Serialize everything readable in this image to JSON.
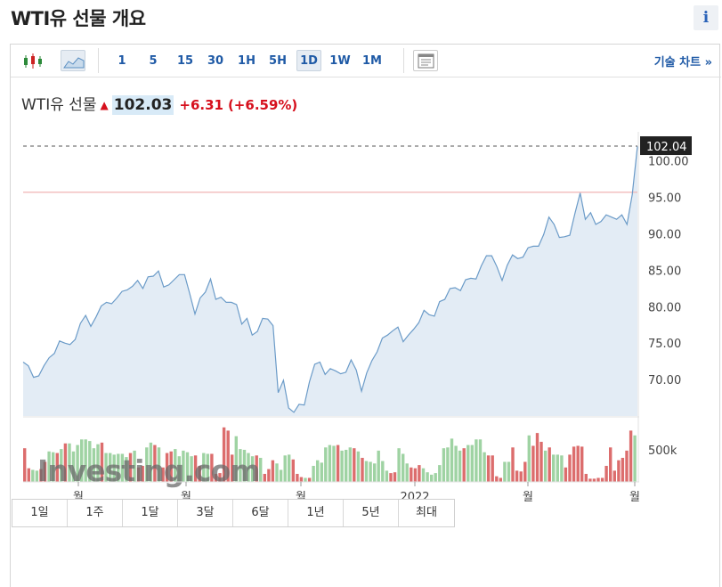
{
  "page": {
    "title": "WTI유 선물 개요",
    "info_label": "i"
  },
  "toolbar": {
    "intervals": [
      "1",
      "5",
      "15",
      "30",
      "1H",
      "5H",
      "1D",
      "1W",
      "1M"
    ],
    "selected_interval": "1D",
    "tech_chart_link": "기술 차트 »",
    "icons": [
      "candlestick-chart-icon",
      "area-chart-icon",
      "print-settings-icon"
    ]
  },
  "quote": {
    "name": "WTI유 선물",
    "direction": "up",
    "last": "102.03",
    "change": "+6.31",
    "change_pct": "(+6.59%)"
  },
  "range_buttons": [
    "1일",
    "1주",
    "1달",
    "3달",
    "6달",
    "1년",
    "5년",
    "최대"
  ],
  "colors": {
    "line": "#6b9bc8",
    "area": "#e3ecf5",
    "up_volume": "#9fd3a3",
    "down_volume": "#dc6d6d",
    "reference_line": "#f0b3b3",
    "label_bg": "#222222"
  },
  "chart_data": {
    "type": "area",
    "y_ticks": [
      "100.00",
      "95.00",
      "90.00",
      "85.00",
      "80.00",
      "75.00",
      "70.00"
    ],
    "ylim": [
      65,
      104
    ],
    "x_labels": [
      "월",
      "월",
      "월",
      "2022",
      "월",
      "월"
    ],
    "current_price_label": "102.04",
    "reference_value": 95.7,
    "volume_label": "500k",
    "watermark": "Investing.com",
    "series": [
      {
        "name": "WTI유 선물",
        "values": [
          72.4,
          71.9,
          70.3,
          70.5,
          71.9,
          73.0,
          73.6,
          75.3,
          75.0,
          74.8,
          75.5,
          77.7,
          78.8,
          77.3,
          78.6,
          80.1,
          80.6,
          80.4,
          81.2,
          82.1,
          82.3,
          82.8,
          83.6,
          82.5,
          84.1,
          84.2,
          84.9,
          82.7,
          83.0,
          83.7,
          84.4,
          84.4,
          81.8,
          79.0,
          81.2,
          82.0,
          83.8,
          81.0,
          81.3,
          80.6,
          80.6,
          80.3,
          77.6,
          78.4,
          76.1,
          76.6,
          78.4,
          78.3,
          77.4,
          68.2,
          69.9,
          66.1,
          65.5,
          66.6,
          66.5,
          69.7,
          72.1,
          72.4,
          70.7,
          71.5,
          71.2,
          70.8,
          71.0,
          72.7,
          71.3,
          68.4,
          70.9,
          72.6,
          73.8,
          75.7,
          76.1,
          76.7,
          77.2,
          75.2,
          76.1,
          76.9,
          77.8,
          79.5,
          78.9,
          78.7,
          80.7,
          81.0,
          82.5,
          82.6,
          82.2,
          83.7,
          83.9,
          83.8,
          85.6,
          87.0,
          87.0,
          85.5,
          83.6,
          85.7,
          87.1,
          86.6,
          86.8,
          88.1,
          88.3,
          88.3,
          89.9,
          92.3,
          91.3,
          89.5,
          89.6,
          89.8,
          92.8,
          95.6,
          92.0,
          92.9,
          91.3,
          91.7,
          92.6,
          92.3,
          92.0,
          92.6,
          91.3,
          95.4,
          102.0
        ]
      },
      {
        "name": "volume",
        "values": [
          4.2,
          1.7,
          1.5,
          1.4,
          1.6,
          2.5,
          3.8,
          3.7,
          3.6,
          4.1,
          4.8,
          4.8,
          3.8,
          4.6,
          5.3,
          5.3,
          5.1,
          4.2,
          4.7,
          4.9,
          3.6,
          3.6,
          3.4,
          3.5,
          3.5,
          3.1,
          3.6,
          3.9,
          1.8,
          2.0,
          4.3,
          4.9,
          4.6,
          4.3,
          1.8,
          3.6,
          3.8,
          4.1,
          3.2,
          3.9,
          3.7,
          3.2,
          3.3,
          2.0,
          3.6,
          3.5,
          3.5,
          1.0,
          1.1,
          6.8,
          6.4,
          3.4,
          5.7,
          4.1,
          4.0,
          3.6,
          3.2,
          3.3,
          3.0,
          1.0,
          1.6,
          2.7,
          2.3,
          1.5,
          3.3,
          3.4,
          2.8,
          1.0,
          0.6,
          0.5,
          0.5,
          2.0,
          2.7,
          2.4,
          4.3,
          4.6,
          4.5,
          4.6,
          3.9,
          4.0,
          4.3,
          4.2,
          3.8,
          3.0,
          2.6,
          2.5,
          2.3,
          3.9,
          2.6,
          1.4,
          1.1,
          1.2,
          4.2,
          3.5,
          2.3,
          1.8,
          1.7,
          2.1,
          1.7,
          1.2,
          0.9,
          1.1,
          2.1,
          4.2,
          4.3,
          5.4,
          4.5,
          3.9,
          4.2,
          4.6,
          4.6,
          5.3,
          5.3,
          3.7,
          3.3,
          3.3,
          0.7,
          0.5,
          2.5,
          2.5,
          4.3,
          1.4,
          1.3,
          2.5,
          5.8,
          4.5,
          6.1,
          5.0,
          3.9,
          4.3,
          3.4,
          3.4,
          3.3,
          1.8,
          3.4,
          4.4,
          4.5,
          4.4,
          1.0,
          0.4,
          0.4,
          0.5,
          0.5,
          2.0,
          4.3,
          1.4,
          2.7,
          3.0,
          3.9,
          6.4,
          5.8
        ],
        "direction": [
          "d",
          "d",
          "u",
          "u",
          "d",
          "d",
          "u",
          "u",
          "d",
          "u",
          "d",
          "u",
          "u",
          "u",
          "u",
          "u",
          "u",
          "u",
          "u",
          "d",
          "u",
          "u",
          "u",
          "u",
          "u",
          "u",
          "d",
          "u",
          "d",
          "d",
          "u",
          "u",
          "d",
          "u",
          "d",
          "d",
          "d",
          "u",
          "u",
          "u",
          "u",
          "u",
          "d",
          "d",
          "u",
          "u",
          "d",
          "d",
          "d",
          "d",
          "d",
          "d",
          "u",
          "u",
          "u",
          "u",
          "u",
          "d",
          "u",
          "d",
          "d",
          "d",
          "u",
          "u",
          "u",
          "u",
          "d",
          "d",
          "d",
          "u",
          "d",
          "u",
          "u",
          "u",
          "u",
          "u",
          "u",
          "d",
          "u",
          "u",
          "u",
          "d",
          "u",
          "d",
          "u",
          "u",
          "u",
          "u",
          "u",
          "u",
          "d",
          "d",
          "u",
          "u",
          "u",
          "d",
          "d",
          "d",
          "u",
          "u",
          "u",
          "u",
          "u",
          "u",
          "u",
          "u",
          "u",
          "u",
          "d",
          "u",
          "u",
          "u",
          "u",
          "u",
          "d",
          "d",
          "d",
          "d",
          "u",
          "u",
          "d",
          "d",
          "d",
          "d",
          "u",
          "d",
          "d",
          "d",
          "u",
          "d",
          "u",
          "u",
          "u",
          "d",
          "d",
          "d",
          "d",
          "d",
          "d",
          "d",
          "d",
          "d",
          "d",
          "d",
          "d",
          "d",
          "d",
          "d",
          "d",
          "d",
          "u",
          "d"
        ]
      }
    ]
  }
}
